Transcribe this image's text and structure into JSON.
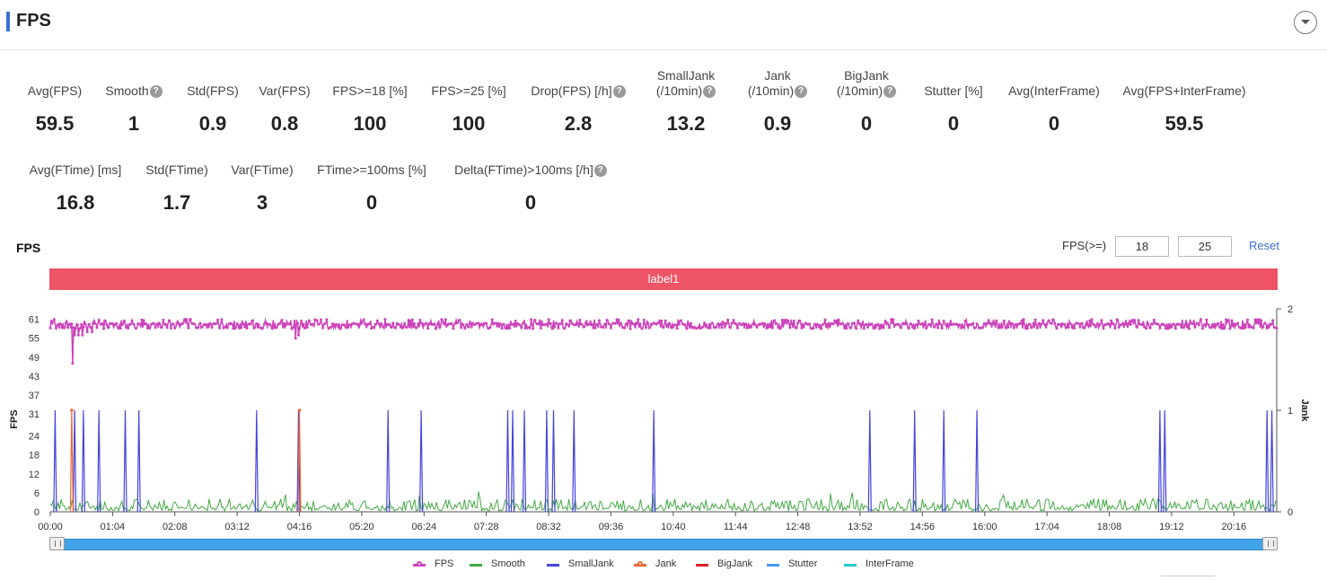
{
  "header": {
    "title": "FPS"
  },
  "metrics_row1": [
    {
      "label": "Avg(FPS)",
      "value": "59.5",
      "help": false
    },
    {
      "label": "Smooth",
      "value": "1",
      "help": true
    },
    {
      "label": "Std(FPS)",
      "value": "0.9",
      "help": false
    },
    {
      "label": "Var(FPS)",
      "value": "0.8",
      "help": false
    },
    {
      "label": "FPS>=18 [%]",
      "value": "100",
      "help": false
    },
    {
      "label": "FPS>=25 [%]",
      "value": "100",
      "help": false
    },
    {
      "label": "Drop(FPS) [/h]",
      "value": "2.8",
      "help": true
    },
    {
      "label": "SmallJank",
      "label2": "(/10min)",
      "value": "13.2",
      "help": true
    },
    {
      "label": "Jank",
      "label2": "(/10min)",
      "value": "0.9",
      "help": true
    },
    {
      "label": "BigJank",
      "label2": "(/10min)",
      "value": "0",
      "help": true
    },
    {
      "label": "Stutter [%]",
      "value": "0",
      "help": false
    },
    {
      "label": "Avg(InterFrame)",
      "value": "0",
      "help": false
    },
    {
      "label": "Avg(FPS+InterFrame)",
      "value": "59.5",
      "help": false
    }
  ],
  "metrics_row2": [
    {
      "label": "Avg(FTime) [ms]",
      "value": "16.8",
      "help": false
    },
    {
      "label": "Std(FTime)",
      "value": "1.7",
      "help": false
    },
    {
      "label": "Var(FTime)",
      "value": "3",
      "help": false
    },
    {
      "label": "FTime>=100ms [%]",
      "value": "0",
      "help": false
    },
    {
      "label": "Delta(FTime)>100ms [/h]",
      "value": "0",
      "help": true
    }
  ],
  "chart_section": {
    "title": "FPS",
    "threshold_label": "FPS(>=)",
    "threshold_1": "18",
    "threshold_2": "25",
    "reset_label": "Reset",
    "band_label": "label1"
  },
  "colors": {
    "FPS": "#cc44bb",
    "Smooth": "#44aa44",
    "SmallJank": "#4444dd",
    "Jank": "#ee6633",
    "BigJank": "#dd2222",
    "Stutter": "#4499ee",
    "InterFrame": "#22cccc",
    "band": "#ee5566",
    "accent": "#3b6fd8"
  },
  "chart_data": {
    "type": "line",
    "ylabel": "FPS",
    "y2label": "Jank",
    "y_ticks": [
      0,
      6,
      12,
      18,
      24,
      31,
      37,
      43,
      49,
      55,
      61
    ],
    "y2_ticks": [
      0,
      1,
      2
    ],
    "x_tick_labels": [
      "00:00",
      "01:04",
      "02:08",
      "03:12",
      "04:16",
      "05:20",
      "06:24",
      "07:28",
      "08:32",
      "09:36",
      "10:40",
      "11:44",
      "12:48",
      "13:52",
      "14:56",
      "16:00",
      "17:04",
      "18:08",
      "19:12",
      "20:16"
    ],
    "x_range_seconds": [
      0,
      1260
    ],
    "fps_baseline": 59.5,
    "fps_dips": [
      {
        "t": 23,
        "fps": 47
      },
      {
        "t": 25,
        "fps": 56
      },
      {
        "t": 29,
        "fps": 56
      },
      {
        "t": 33,
        "fps": 56
      },
      {
        "t": 38,
        "fps": 57
      },
      {
        "t": 43,
        "fps": 57
      },
      {
        "t": 55,
        "fps": 58
      },
      {
        "t": 252,
        "fps": 55
      },
      {
        "t": 255,
        "fps": 56
      }
    ],
    "small_jank_events_seconds": [
      5,
      25,
      34,
      50,
      77,
      91,
      212,
      255,
      347,
      381,
      470,
      475,
      487,
      510,
      517,
      538,
      620,
      842,
      888,
      918,
      952,
      1140,
      1145,
      1250,
      1255
    ],
    "jank_events_seconds": [
      22,
      256
    ],
    "legend": [
      "FPS",
      "Smooth",
      "SmallJank",
      "Jank",
      "BigJank",
      "Stutter",
      "InterFrame"
    ]
  }
}
